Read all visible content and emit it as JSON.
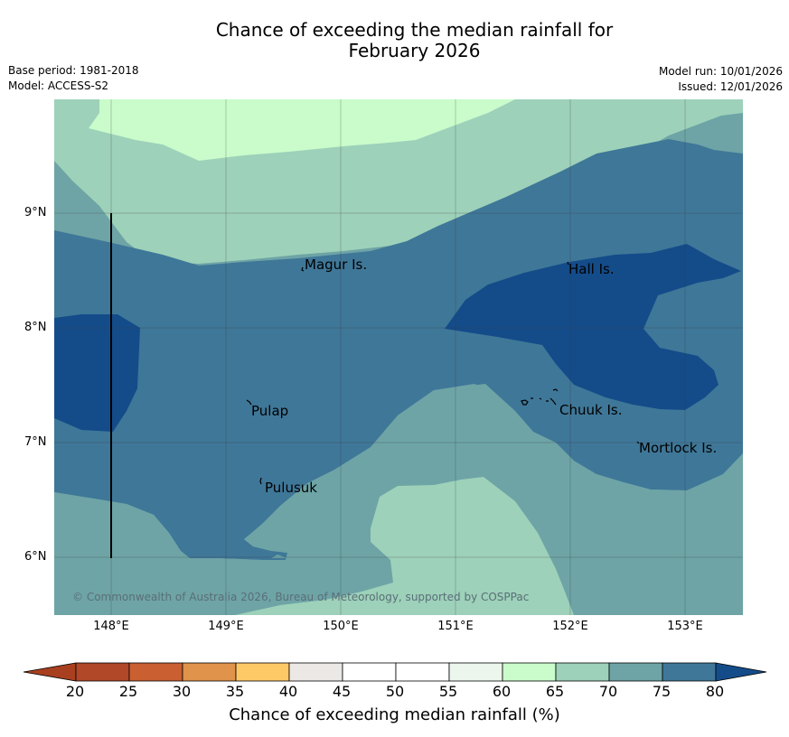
{
  "title": {
    "line1": "Chance of exceeding the median rainfall for",
    "line2": "February 2026"
  },
  "meta": {
    "base_period": "Base period: 1981-2018",
    "model": "Model: ACCESS-S2",
    "model_run": "Model run: 10/01/2026",
    "issued": "Issued: 12/01/2026"
  },
  "map": {
    "y_ticks": [
      "9°N",
      "8°N",
      "7°N",
      "6°N"
    ],
    "x_ticks": [
      "148°E",
      "149°E",
      "150°E",
      "151°E",
      "152°E",
      "153°E"
    ],
    "places": [
      "Magur Is.",
      "Hall Is.",
      "Pulap",
      "Chuuk Is.",
      "Mortlock Is.",
      "Pulusuk"
    ],
    "copyright": "© Commonwealth of Australia 2026, Bureau of Meteorology, supported by COSPPac",
    "colors": {
      "c60_65": "#c9fbcb",
      "c65_70": "#9dd1b9",
      "c70_75": "#6ea4a6",
      "c75_80": "#3f7798",
      "c80_plus": "#144c8a"
    }
  },
  "colorbar": {
    "label": "Chance of exceeding median rainfall (%)",
    "ticks": [
      "20",
      "25",
      "30",
      "35",
      "40",
      "45",
      "50",
      "55",
      "60",
      "65",
      "70",
      "75",
      "80"
    ],
    "colors": [
      "#a8401f",
      "#b14828",
      "#ca5f31",
      "#e0934a",
      "#fdc966",
      "#ece8e6",
      "#ffffff",
      "#ffffff",
      "#edf6ec",
      "#c9fbcb",
      "#9dd1b9",
      "#6ea4a6",
      "#3f7798",
      "#144c8a"
    ]
  }
}
